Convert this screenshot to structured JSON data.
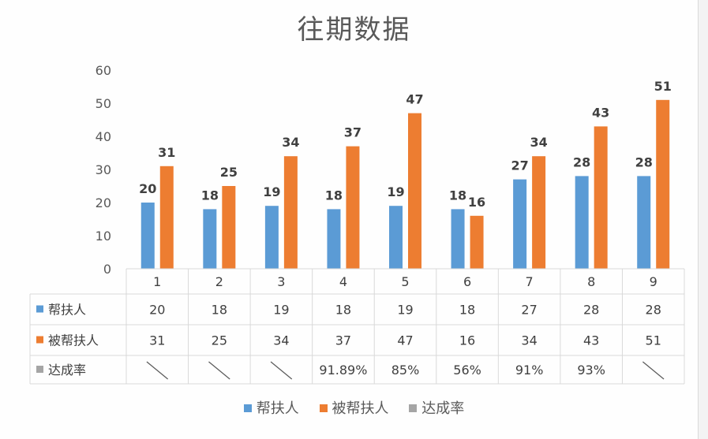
{
  "chart_data": {
    "type": "bar",
    "title": "往期数据",
    "categories": [
      "1",
      "2",
      "3",
      "4",
      "5",
      "6",
      "7",
      "8",
      "9"
    ],
    "ylim": [
      0,
      60
    ],
    "yticks": [
      0,
      10,
      20,
      30,
      40,
      50,
      60
    ],
    "grid": false,
    "legend_position": "bottom",
    "series": [
      {
        "name": "帮扶人",
        "color": "#5b9bd5",
        "values": [
          20,
          18,
          19,
          18,
          19,
          18,
          27,
          28,
          28
        ]
      },
      {
        "name": "被帮扶人",
        "color": "#ed7d31",
        "values": [
          31,
          25,
          34,
          37,
          47,
          16,
          34,
          43,
          51
        ]
      },
      {
        "name": "达成率",
        "color": "#a5a5a5",
        "values": [
          null,
          null,
          null,
          "91.89%",
          "85%",
          "56%",
          "91%",
          "93%",
          null
        ]
      }
    ]
  }
}
